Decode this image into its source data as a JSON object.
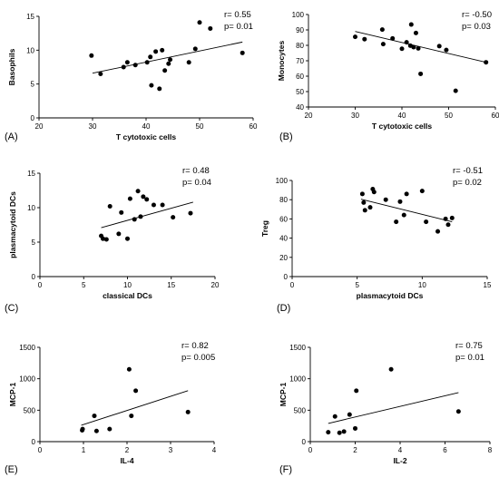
{
  "chart_data": [
    {
      "type": "scatter",
      "panel": "(A)",
      "xlabel": "T cytotoxic cells",
      "ylabel": "Basophils",
      "xlim": [
        20,
        60
      ],
      "ylim": [
        0,
        15
      ],
      "xticks": [
        20,
        30,
        40,
        50,
        60
      ],
      "yticks": [
        0,
        5,
        10,
        15
      ],
      "stats": [
        "r= 0.55",
        "p= 0.01"
      ],
      "x": [
        29.8,
        31.5,
        35.8,
        36.5,
        38.0,
        40.2,
        40.8,
        41.0,
        41.8,
        42.5,
        43.0,
        43.5,
        44.2,
        44.5,
        48.0,
        49.2,
        50.0,
        52.0,
        58.0
      ],
      "y": [
        9.2,
        6.5,
        7.5,
        8.2,
        7.8,
        8.2,
        9.0,
        4.8,
        9.8,
        4.3,
        10.0,
        7.0,
        8.0,
        8.6,
        8.2,
        10.2,
        14.1,
        13.2,
        9.6
      ],
      "fit": {
        "x": [
          30,
          58
        ],
        "y": [
          6.6,
          11.2
        ]
      }
    },
    {
      "type": "scatter",
      "panel": "(B)",
      "xlabel": "T cytotoxic cells",
      "ylabel": "Monocytes",
      "xlim": [
        20,
        60
      ],
      "ylim": [
        40,
        100
      ],
      "xticks": [
        20,
        30,
        40,
        50,
        60
      ],
      "yticks": [
        40,
        50,
        60,
        70,
        80,
        90,
        100
      ],
      "stats": [
        "r= -0.50",
        "p= 0.03"
      ],
      "x": [
        30.0,
        32.0,
        35.8,
        36.0,
        38.0,
        40.0,
        41.0,
        41.8,
        42.0,
        42.5,
        43.0,
        43.5,
        44.0,
        48.0,
        49.5,
        51.5,
        58.0
      ],
      "y": [
        85.5,
        84.0,
        90.2,
        80.8,
        84.5,
        77.8,
        82.0,
        79.8,
        93.5,
        78.8,
        88.0,
        78.0,
        61.5,
        79.5,
        77.0,
        50.5,
        69.0
      ],
      "fit": {
        "x": [
          30,
          58
        ],
        "y": [
          89.0,
          69.0
        ]
      }
    },
    {
      "type": "scatter",
      "panel": "(C)",
      "xlabel": "classical DCs",
      "ylabel": "plasmacytoid DCs",
      "xlim": [
        0,
        20
      ],
      "ylim": [
        0,
        15
      ],
      "xticks": [
        0,
        5,
        10,
        15,
        20
      ],
      "yticks": [
        0,
        5,
        10,
        15
      ],
      "stats": [
        "r= 0.48",
        "p= 0.04"
      ],
      "x": [
        7.0,
        7.2,
        7.6,
        8.0,
        9.0,
        9.3,
        10.0,
        10.3,
        10.8,
        11.2,
        11.5,
        11.8,
        12.2,
        13.0,
        14.0,
        15.2,
        17.2
      ],
      "y": [
        5.9,
        5.5,
        5.4,
        10.2,
        6.2,
        9.3,
        5.5,
        11.3,
        8.3,
        12.4,
        8.7,
        11.6,
        11.2,
        10.4,
        10.4,
        8.6,
        9.2
      ],
      "fit": {
        "x": [
          7,
          17.5
        ],
        "y": [
          7.1,
          10.8
        ]
      }
    },
    {
      "type": "scatter",
      "panel": "(D)",
      "xlabel": "plasmacytoid DCs",
      "ylabel": "Treg",
      "xlim": [
        0,
        15
      ],
      "ylim": [
        0,
        100
      ],
      "xticks": [
        0,
        5,
        10,
        15
      ],
      "yticks": [
        0,
        20,
        40,
        60,
        80,
        100
      ],
      "stats": [
        "r= -0.51",
        "p= 0.02"
      ],
      "x": [
        5.4,
        5.5,
        5.6,
        6.0,
        6.2,
        6.3,
        7.2,
        8.0,
        8.3,
        8.6,
        8.8,
        10.0,
        10.3,
        11.2,
        11.8,
        12.0,
        12.3
      ],
      "y": [
        86.0,
        77.0,
        69.0,
        72.0,
        91.0,
        88.0,
        80.0,
        57.0,
        78.0,
        64.0,
        86.0,
        89.0,
        57.0,
        47.0,
        60.0,
        54.0,
        61.0
      ],
      "fit": {
        "x": [
          5.3,
          12.3
        ],
        "y": [
          80.5,
          57.0
        ]
      }
    },
    {
      "type": "scatter",
      "panel": "(E)",
      "xlabel": "IL-4",
      "ylabel": "MCP-1",
      "xlim": [
        0,
        4
      ],
      "ylim": [
        0,
        1500
      ],
      "xticks": [
        0,
        1,
        2,
        3,
        4
      ],
      "yticks": [
        0,
        500,
        1000,
        1500
      ],
      "stats": [
        "r= 0.82",
        "p= 0.005"
      ],
      "x": [
        0.97,
        0.98,
        1.25,
        1.3,
        1.6,
        2.05,
        2.1,
        2.2,
        3.4
      ],
      "y": [
        180,
        200,
        410,
        170,
        200,
        1150,
        410,
        810,
        470
      ],
      "fit": {
        "x": [
          0.95,
          3.4
        ],
        "y": [
          260,
          810
        ]
      }
    },
    {
      "type": "scatter",
      "panel": "(F)",
      "xlabel": "IL-2",
      "ylabel": "MCP-1",
      "xlim": [
        0,
        8
      ],
      "ylim": [
        0,
        1500
      ],
      "xticks": [
        0,
        2,
        4,
        6,
        8
      ],
      "yticks": [
        0,
        500,
        1000,
        1500
      ],
      "stats": [
        "r= 0.75",
        "p= 0.01"
      ],
      "x": [
        0.8,
        1.1,
        1.3,
        1.5,
        1.75,
        2.0,
        2.05,
        3.6,
        6.6
      ],
      "y": [
        150,
        400,
        140,
        160,
        430,
        210,
        810,
        1150,
        480
      ],
      "fit": {
        "x": [
          0.8,
          6.6
        ],
        "y": [
          290,
          780
        ]
      }
    }
  ]
}
